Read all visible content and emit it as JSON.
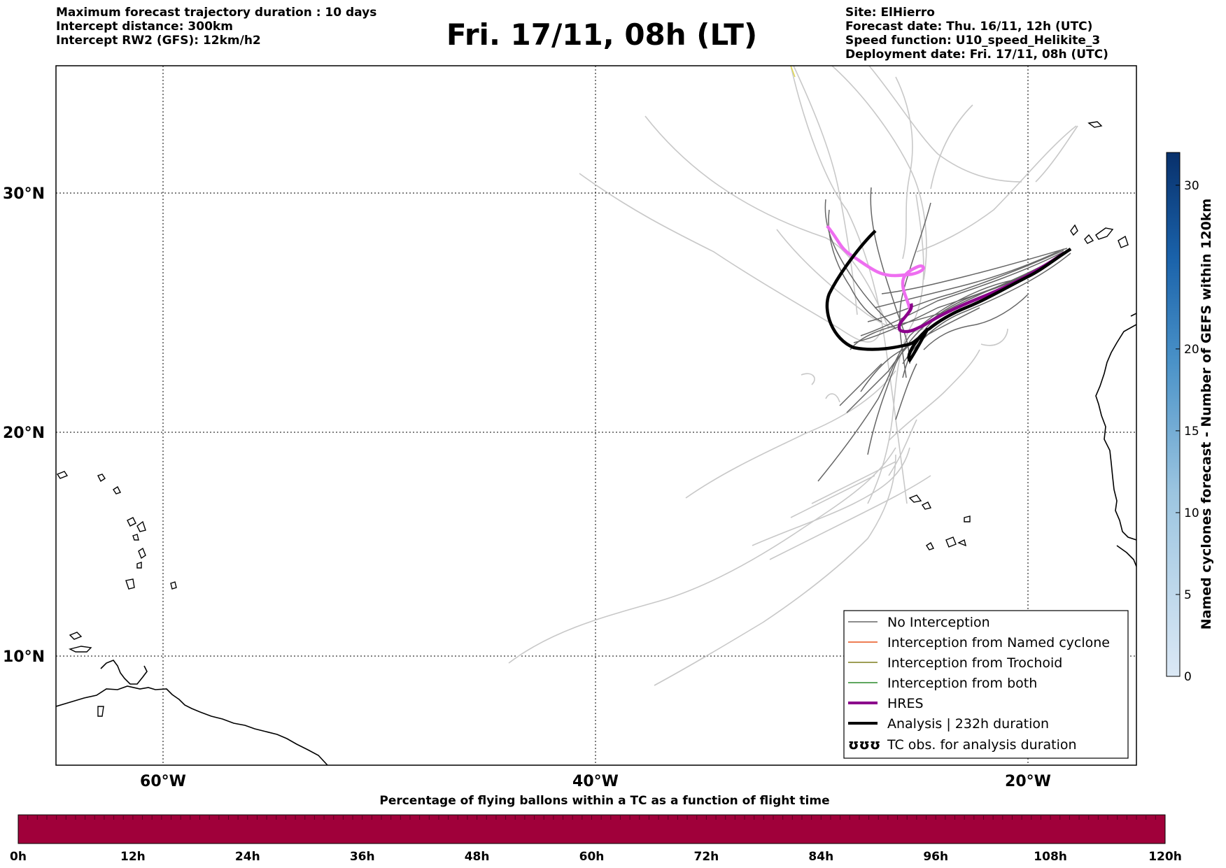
{
  "header": {
    "left": [
      "Maximum forecast trajectory duration : 10 days",
      "Intercept distance: 300km",
      "Intercept RW2 (GFS):  12km/h2"
    ],
    "title": "Fri. 17/11, 08h (LT)",
    "right": [
      "Site: ElHierro",
      "Forecast date: Thu. 16/11, 12h (UTC)",
      "Speed function: U10_speed_Helikite_3",
      "Deployment date: Fri. 17/11, 08h (UTC)"
    ]
  },
  "map": {
    "lat_labels": [
      "30°N",
      "20°N",
      "10°N"
    ],
    "lon_labels": [
      "60°W",
      "40°W",
      "20°W"
    ],
    "lon_range": [
      -65,
      -15
    ],
    "lat_range": [
      5,
      35
    ],
    "grid": "dotted",
    "colors": {
      "no_interception": "#666666",
      "named_cyclone": "#e8541c",
      "trochoid": "#7f7f1f",
      "both": "#2a8a2a",
      "hres": "#8b008b",
      "hres_light": "#ee6ef0",
      "analysis": "#000000",
      "light_trajectory": "#c8c8c8"
    }
  },
  "legend": {
    "items": [
      "No Interception",
      "Interception from Named cyclone",
      "Interception from Trochoid",
      "Interception from both",
      "HRES",
      "Analysis | 232h duration",
      "TC obs. for analysis duration"
    ],
    "tc_symbol": "ʊʊʊ"
  },
  "colorbar_right": {
    "label": "Named cyclones forecast - Number of GEFS within 120km",
    "ticks": [
      "0",
      "5",
      "10",
      "15",
      "20",
      "30"
    ],
    "tick_values": [
      0,
      5,
      10,
      15,
      20,
      30
    ],
    "max": 32,
    "color_low": "#dbe8f5",
    "color_high": "#08306b"
  },
  "colorbar_bottom": {
    "label": "Percentage of flying ballons within a TC as a function of flight time",
    "ticks": [
      "0h",
      "12h",
      "24h",
      "36h",
      "48h",
      "60h",
      "72h",
      "84h",
      "96h",
      "108h",
      "120h"
    ],
    "color": "#a0003a"
  }
}
